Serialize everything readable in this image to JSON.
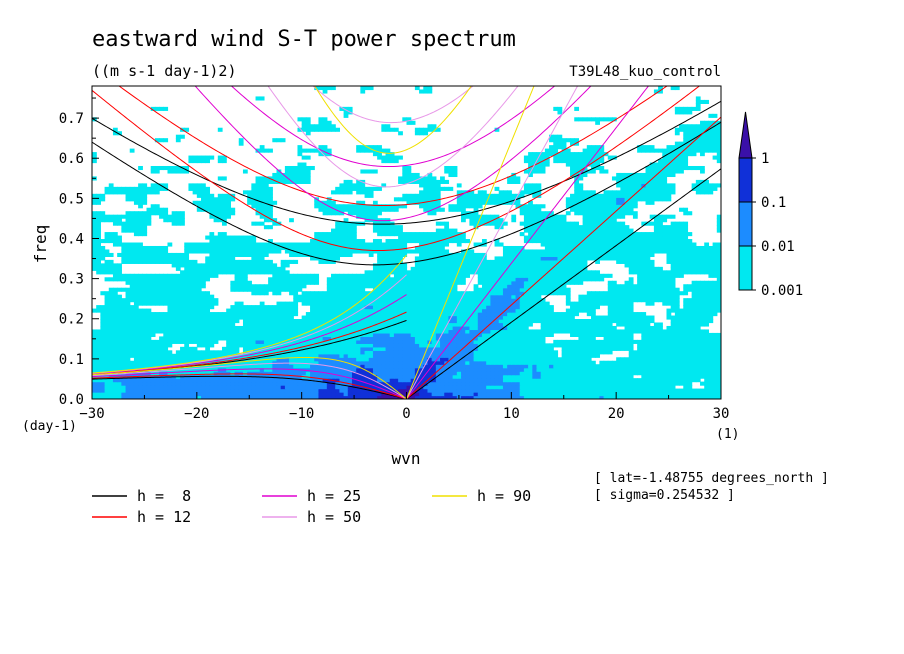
{
  "chart_data": {
    "type": "heatmap",
    "title": "eastward wind S-T power spectrum",
    "subtitle": "((m s-1 day-1)2)",
    "run_label": "T39L48_kuo_control",
    "xlabel": "wvn",
    "ylabel": "freq",
    "x_unit": "(1)",
    "y_unit": "(day-1)",
    "xlim": [
      -30,
      30
    ],
    "ylim": [
      0,
      0.78
    ],
    "x_ticks": [
      "-30",
      "-20",
      "-10",
      "0",
      "10",
      "20",
      "30"
    ],
    "y_ticks": [
      "0.0",
      "0.1",
      "0.2",
      "0.3",
      "0.4",
      "0.5",
      "0.6",
      "0.7"
    ],
    "colorbar": {
      "levels": [
        "0.001",
        "0.01",
        "0.1",
        "1"
      ],
      "colors": [
        "#00e8f0",
        "#1c8cff",
        "#1030d8",
        "#3a10a8"
      ],
      "low_color": "#ffffff"
    },
    "dispersion_curves": [
      {
        "label": "h =  8",
        "h": 8,
        "color": "#000000"
      },
      {
        "label": "h = 12",
        "h": 12,
        "color": "#ff0000"
      },
      {
        "label": "h = 25",
        "h": 25,
        "color": "#e000d0"
      },
      {
        "label": "h = 50",
        "h": 50,
        "color": "#e898e8"
      },
      {
        "label": "h = 90",
        "h": 90,
        "color": "#f0e000"
      }
    ],
    "info": [
      "[ lat=-1.48755 degrees_north ]",
      "[ sigma=0.254532 ]"
    ]
  }
}
